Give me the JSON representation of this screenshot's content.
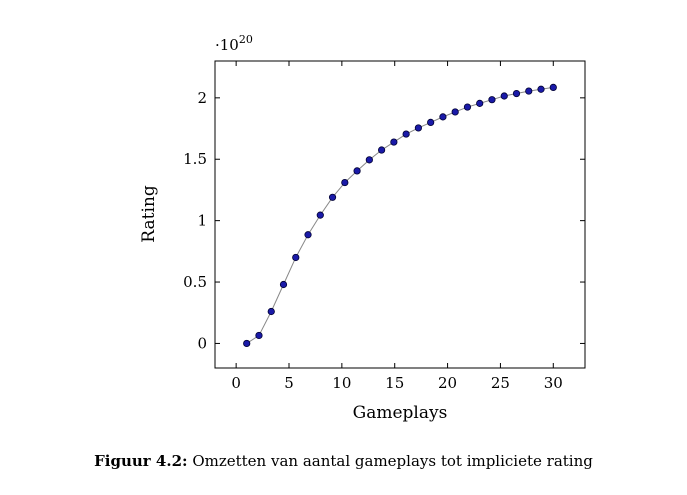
{
  "chart_data": {
    "type": "line",
    "title": "",
    "xlabel": "Gameplays",
    "ylabel": "Rating",
    "y_multiplier": {
      "base": "·10",
      "exponent": "20"
    },
    "xlim": [
      -2,
      33
    ],
    "ylim": [
      -0.2,
      2.3
    ],
    "x_ticks": [
      0,
      5,
      10,
      15,
      20,
      25,
      30
    ],
    "y_ticks": [
      0,
      0.5,
      1,
      1.5,
      2
    ],
    "y_tick_labels": [
      "0",
      "0.5",
      "1",
      "1.5",
      "2"
    ],
    "grid": false,
    "line_color": "#888888",
    "marker_color": "#1a1aa8",
    "series": [
      {
        "x": [
          1,
          2.16,
          3.32,
          4.48,
          5.64,
          6.8,
          7.96,
          9.12,
          10.28,
          11.44,
          12.6,
          13.76,
          14.92,
          16.08,
          17.24,
          18.4,
          19.56,
          20.72,
          21.88,
          23.04,
          24.2,
          25.36,
          26.52,
          27.68,
          28.84,
          30
        ],
        "values": [
          0,
          0.065,
          0.26,
          0.48,
          0.7,
          0.885,
          1.045,
          1.19,
          1.31,
          1.405,
          1.495,
          1.575,
          1.64,
          1.705,
          1.755,
          1.8,
          1.845,
          1.885,
          1.925,
          1.955,
          1.985,
          2.015,
          2.035,
          2.055,
          2.07,
          2.085
        ]
      }
    ]
  },
  "caption": {
    "label": "Figuur 4.2:",
    "text": " Omzetten van aantal gameplays tot impliciete rating"
  }
}
